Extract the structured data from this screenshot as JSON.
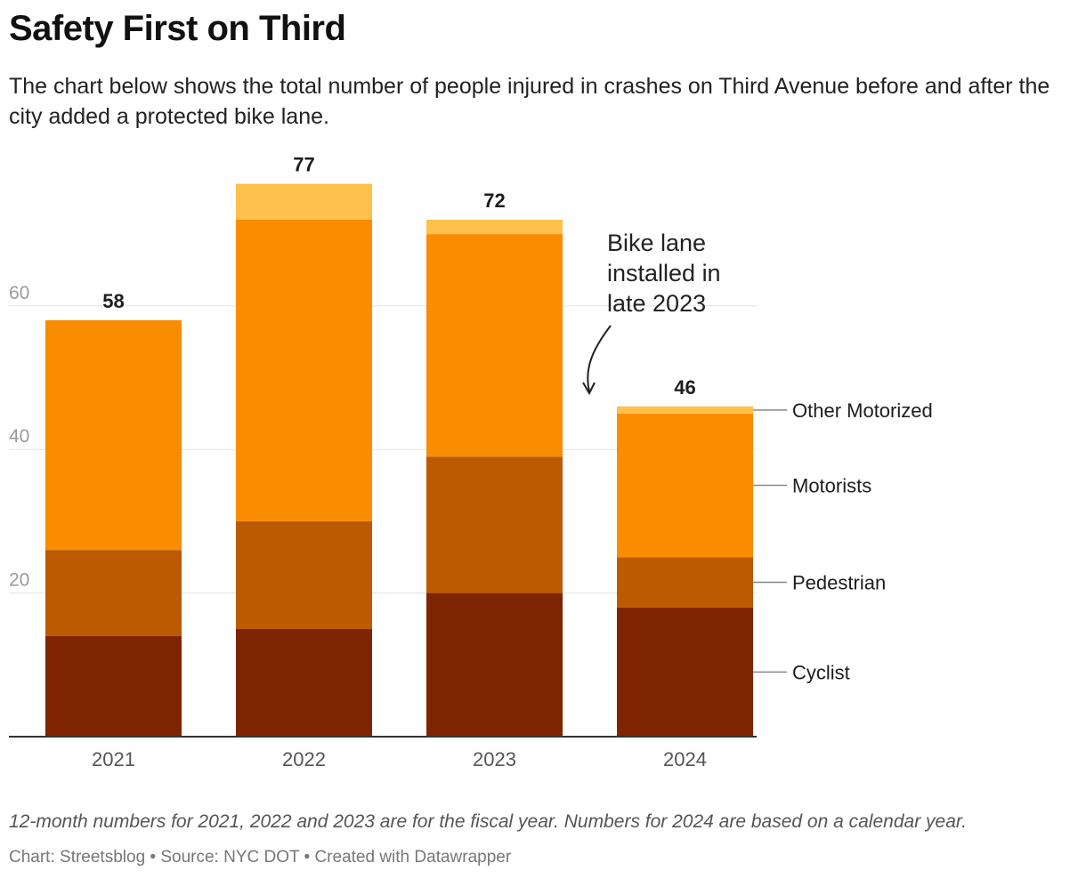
{
  "title": "Safety First on Third",
  "subtitle": "The chart below shows the total number of people injured in crashes on Third Avenue before and after the city added a protected bike lane.",
  "chart_data": {
    "type": "bar",
    "stacked": true,
    "categories": [
      "2021",
      "2022",
      "2023",
      "2024"
    ],
    "series": [
      {
        "name": "Cyclist",
        "values": [
          14,
          15,
          20,
          18
        ],
        "color": "#7f2400"
      },
      {
        "name": "Pedestrian",
        "values": [
          12,
          15,
          19,
          7
        ],
        "color": "#bb5a00"
      },
      {
        "name": "Motorists",
        "values": [
          32,
          42,
          31,
          20
        ],
        "color": "#fa8c00"
      },
      {
        "name": "Other Motorized",
        "values": [
          0,
          5,
          2,
          1
        ],
        "color": "#ffc04c"
      }
    ],
    "totals": [
      "58",
      "77",
      "72",
      "46"
    ],
    "yticks": [
      "20",
      "40",
      "60"
    ],
    "ylim": [
      0,
      80
    ],
    "grid": true,
    "legend_position": "right, inline labels",
    "annotation": "Bike lane installed in late 2023"
  },
  "notes": "12-month numbers for 2021, 2022 and 2023 are for the fiscal year. Numbers for 2024 are based on a calendar year.",
  "byline": "Chart: Streetsblog • Source: NYC DOT • Created with Datawrapper"
}
